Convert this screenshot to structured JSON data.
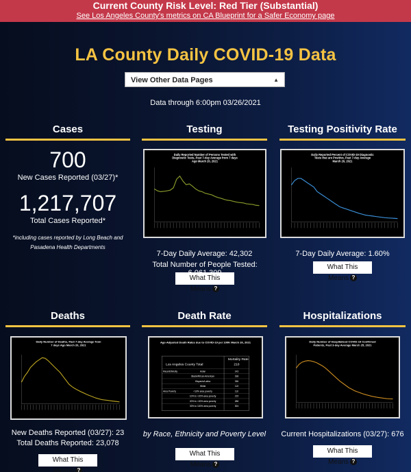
{
  "banner": {
    "title": "Current County Risk Level: Red Tier (Substantial)",
    "link": "See Los Angeles County's metrics on CA Blueprint for a Safer Economy page"
  },
  "page_title": "LA County Daily COVID-19 Data",
  "select": {
    "value": "View Other Data Pages"
  },
  "data_through": "Data through 6:00pm 03/26/2021",
  "cases": {
    "title": "Cases",
    "new_count": "700",
    "new_label": "New Cases Reported (03/27)*",
    "total_count": "1,217,707",
    "total_label": "Total Cases Reported*",
    "footnote": "*including cases reported by Long Beach and Pasadena Health Departments"
  },
  "testing": {
    "title": "Testing",
    "chart_title": "Daily Reported Number of Persons Tested with Diagnostic Tests, Past 7-day Average from 7 days Ago March 20, 2021",
    "avg": "7-Day Daily Average: 42,302",
    "total": "Total Number of People Tested: 6,061,309",
    "button": "What This Means"
  },
  "positivity": {
    "title": "Testing Positivity Rate",
    "chart_title": "Daily Reported Percent of COVID-19 Diagnostic Tests that are Positive, Past 7-day Average March 20, 2021",
    "avg": "7-Day Daily Average: 1.60%",
    "button": "What This Means"
  },
  "deaths": {
    "title": "Deaths",
    "chart_title": "Daily Number of Deaths, Past 7-day Average from 7 days Ago March 20, 2021",
    "new": "New Deaths Reported (03/27): 23",
    "total": "Total Deaths Reported: 23,078",
    "button": "What This Means"
  },
  "death_rate": {
    "title": "Death Rate",
    "chart_title": "Age-Adjusted Death Rates due to COVID-19 per 100K March 26, 2021",
    "table_header": "Mortality Rate",
    "county_label": "Los Angeles County Total",
    "county_value": "210",
    "rows": [
      {
        "group": "Race/Ethnicity",
        "label": "Asian",
        "value": "143"
      },
      {
        "group": "",
        "label": "Black/African American",
        "value": "188"
      },
      {
        "group": "",
        "label": "Hispanic/Latino",
        "value": "336"
      },
      {
        "group": "",
        "label": "White",
        "value": "115"
      },
      {
        "group": "Area Poverty",
        "label": "<10% area poverty",
        "value": "110"
      },
      {
        "group": "",
        "label": "10% to <20% area poverty",
        "value": "215"
      },
      {
        "group": "",
        "label": "20% to <30% area poverty",
        "value": "288"
      },
      {
        "group": "",
        "label": "30% to 100% area poverty",
        "value": "304"
      }
    ],
    "caption": "by Race, Ethnicity and Poverty Level",
    "button": "What This Means"
  },
  "hospitalizations": {
    "title": "Hospitalizations",
    "chart_title": "Daily Number of Hospitalized COVID-19 Confirmed Patients, Past 3-day Average March 25, 2021",
    "current": "Current Hospitalizations (03/27): 676",
    "button": "What This Means"
  },
  "colors": {
    "accent": "#f5c342",
    "banner": "#c4394a",
    "testing_line": "#8a9a2a",
    "positivity_line": "#3a8fd8",
    "deaths_line": "#b8a020",
    "hosp_line": "#c88a20"
  },
  "chart_data": [
    {
      "type": "line",
      "title": "Daily Reported Number of Persons Tested with Diagnostic Tests, Past 7-day Average from 7 days Ago March 20, 2021",
      "series": [
        {
          "values": [
            85000,
            80000,
            78000,
            79000,
            80000,
            82000,
            88000,
            110000,
            118000,
            105000,
            96000,
            98000,
            92000,
            85000,
            80000,
            78000,
            74000,
            72000,
            70000,
            66000,
            63000,
            61000,
            58000,
            56000,
            55000,
            53000,
            51000,
            50000,
            49000,
            47000,
            46000,
            45000,
            43000,
            42302
          ]
        }
      ],
      "ylim": [
        0,
        140000
      ]
    },
    {
      "type": "line",
      "title": "Daily Reported Percent of COVID-19 Diagnostic Tests that are Positive, Past 7-day Average March 20, 2021",
      "series": [
        {
          "values": [
            17,
            19,
            20,
            20,
            19,
            18,
            17,
            16,
            14,
            13,
            12,
            11,
            10,
            9,
            8,
            7,
            6.5,
            6,
            5.5,
            5,
            4.5,
            4,
            3.6,
            3.2,
            3,
            2.8,
            2.6,
            2.4,
            2.2,
            2,
            1.9,
            1.8,
            1.7,
            1.6
          ]
        }
      ],
      "ylim": [
        0,
        25
      ]
    },
    {
      "type": "line",
      "title": "Daily Number of Deaths, Past 7-day Average from 7 days Ago March 20, 2021",
      "series": [
        {
          "values": [
            110,
            140,
            160,
            185,
            200,
            215,
            225,
            235,
            232,
            220,
            205,
            190,
            175,
            160,
            140,
            120,
            100,
            88,
            78,
            70,
            62,
            55,
            48,
            42,
            36,
            30,
            26,
            22,
            20,
            18,
            16,
            14,
            12,
            10
          ]
        }
      ],
      "ylim": [
        0,
        250
      ]
    },
    {
      "type": "line",
      "title": "Daily Number of Hospitalized COVID-19 Confirmed Patients, Past 3-day Average March 25, 2021",
      "series": [
        {
          "values": [
            6500,
            7200,
            7600,
            7800,
            7900,
            7850,
            7700,
            7500,
            7200,
            6900,
            6500,
            6000,
            5500,
            5000,
            4500,
            4000,
            3600,
            3200,
            2800,
            2500,
            2200,
            2000,
            1800,
            1600,
            1450,
            1300,
            1150,
            1050,
            950,
            870,
            800,
            740,
            700,
            676
          ]
        }
      ],
      "ylim": [
        0,
        9000
      ]
    }
  ]
}
